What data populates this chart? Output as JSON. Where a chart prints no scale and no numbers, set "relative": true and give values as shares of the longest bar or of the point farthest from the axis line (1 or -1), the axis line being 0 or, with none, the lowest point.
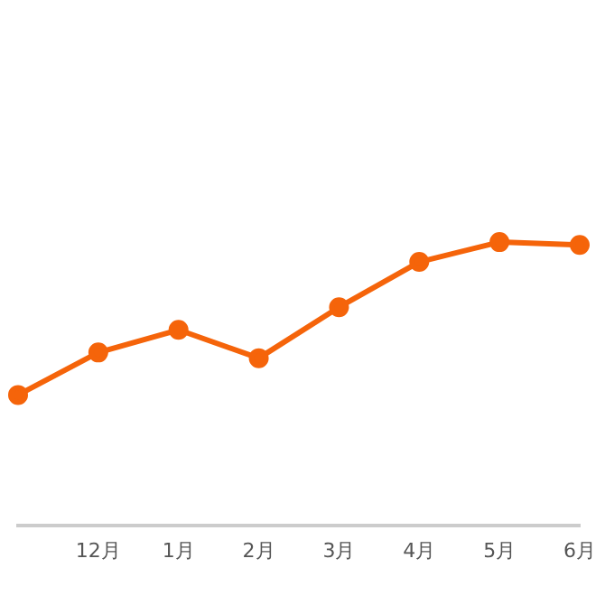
{
  "chart_data": {
    "type": "line",
    "relative": true,
    "categories": [
      null,
      "12月",
      "1月",
      "2月",
      "3月",
      "4月",
      "5月",
      "6月"
    ],
    "series": [
      {
        "color": "#f5640a",
        "values": [
          0.46,
          0.61,
          0.69,
          0.59,
          0.77,
          0.93,
          1,
          0.99
        ]
      }
    ],
    "legend": false,
    "marker": "circle",
    "line_style": "solid"
  }
}
